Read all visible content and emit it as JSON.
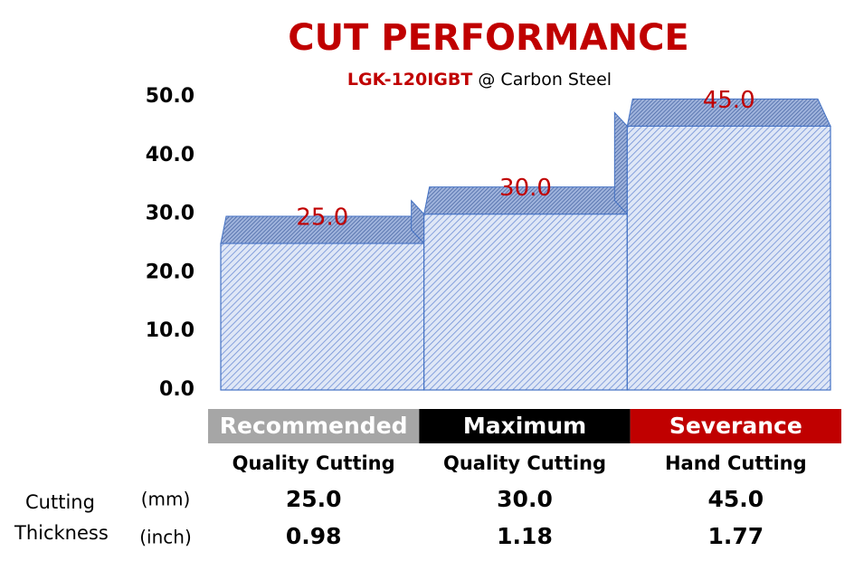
{
  "chart_data": {
    "type": "bar3d",
    "title": "CUT PERFORMANCE",
    "subtitle_parts": [
      "LGK-120IGBT",
      "@ Carbon Steel"
    ],
    "categories": [
      "Recommended",
      "Maximum",
      "Severance"
    ],
    "category_colors": [
      "#a6a6a6",
      "#000000",
      "#c00000"
    ],
    "subcategories": [
      "Quality Cutting",
      "Quality Cutting",
      "Hand Cutting"
    ],
    "values": [
      25,
      30,
      45
    ],
    "value_labels": [
      "25.0",
      "30.0",
      "45.0"
    ],
    "color": "#4472c4",
    "label_color": "#c00000",
    "ylim": [
      0,
      50
    ],
    "yticks": [
      {
        "value": 0,
        "label": "0.0"
      },
      {
        "value": 10,
        "label": "10.0"
      },
      {
        "value": 20,
        "label": "20.0"
      },
      {
        "value": 30,
        "label": "30.0"
      },
      {
        "value": 40,
        "label": "40.0"
      },
      {
        "value": 50,
        "label": "50.0"
      }
    ],
    "grid": false
  },
  "table": {
    "row_label": [
      "Cutting",
      "Thickness"
    ],
    "units": [
      "(mm)",
      "(inch)"
    ],
    "rows": [
      [
        "25.0",
        "30.0",
        "45.0"
      ],
      [
        "0.98",
        "1.18",
        "1.77"
      ]
    ]
  }
}
